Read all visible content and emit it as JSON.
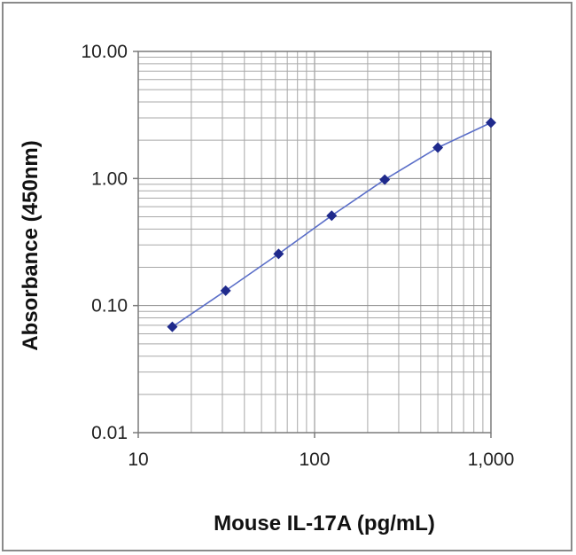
{
  "chart_data": {
    "type": "scatter",
    "title": "",
    "xlabel": "Mouse IL-17A (pg/mL)",
    "ylabel": "Absorbance (450nm)",
    "x_scale": "log",
    "y_scale": "log",
    "xlim": [
      10,
      1000
    ],
    "ylim": [
      0.01,
      10
    ],
    "x_ticks": [
      10,
      100,
      1000
    ],
    "x_tick_labels": [
      "10",
      "100",
      "1,000"
    ],
    "y_ticks": [
      0.01,
      0.1,
      1,
      10
    ],
    "y_tick_labels": [
      "0.01",
      "0.10",
      "1.00",
      "10.00"
    ],
    "grid": true,
    "legend": "none",
    "series": [
      {
        "x": [
          15.6,
          31.3,
          62.5,
          125,
          250,
          500,
          1000
        ],
        "y": [
          0.068,
          0.131,
          0.255,
          0.51,
          0.98,
          1.75,
          2.75
        ],
        "color": "#1f2a8c",
        "line_color": "#5a6ec8",
        "marker": "diamond"
      }
    ]
  }
}
